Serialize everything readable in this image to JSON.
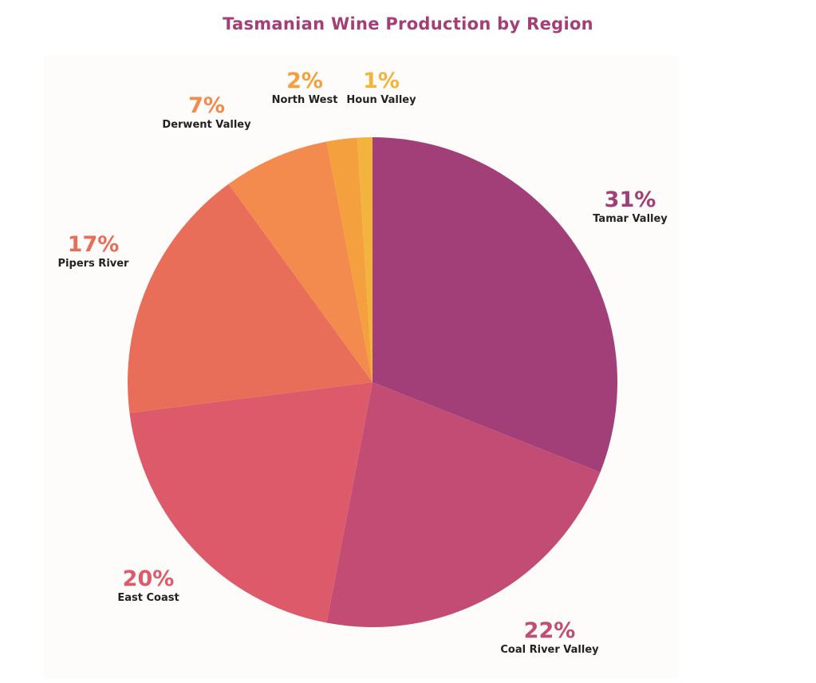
{
  "chart_data": {
    "type": "pie",
    "title": "Tasmanian Wine Production by Region",
    "start": "top",
    "direction": "clockwise",
    "slices": [
      {
        "label": "Tamar Valley",
        "value": 31,
        "display": "31%",
        "color": "#a23f78"
      },
      {
        "label": "Coal River Valley",
        "value": 22,
        "display": "22%",
        "color": "#c24c74"
      },
      {
        "label": "East Coast",
        "value": 20,
        "display": "20%",
        "color": "#dc5a6a"
      },
      {
        "label": "Pipers River",
        "value": 17,
        "display": "17%",
        "color": "#e96e5a"
      },
      {
        "label": "Derwent Valley",
        "value": 7,
        "display": "7%",
        "color": "#f38a4e"
      },
      {
        "label": "North West",
        "value": 2,
        "display": "2%",
        "color": "#f4a03e"
      },
      {
        "label": "Houn Valley",
        "value": 1,
        "display": "1%",
        "color": "#f2b43c"
      }
    ]
  }
}
